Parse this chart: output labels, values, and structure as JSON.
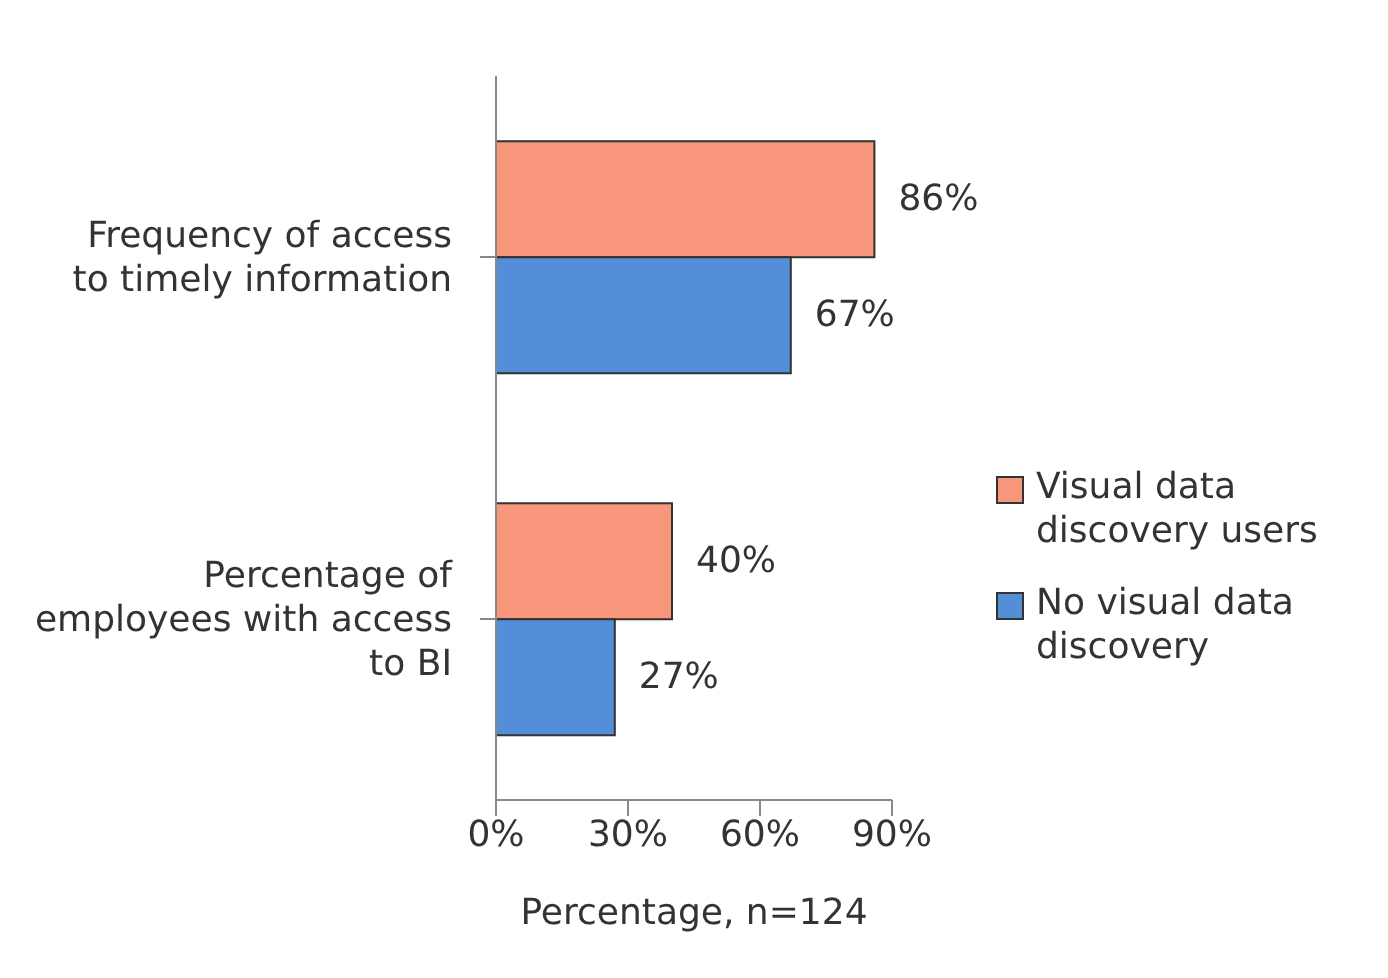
{
  "chart_data": {
    "type": "bar",
    "orientation": "horizontal",
    "categories": [
      "Frequency of access to timely information",
      "Percentage of employees with access to BI"
    ],
    "series": [
      {
        "name": "Visual data discovery users",
        "color": "#f7967a",
        "values": [
          86,
          40
        ],
        "value_labels": [
          "86%",
          "40%"
        ]
      },
      {
        "name": "No visual data discovery",
        "color": "#558ed8",
        "values": [
          67,
          27
        ],
        "value_labels": [
          "67%",
          "27%"
        ]
      }
    ],
    "xlim": [
      0,
      90
    ],
    "xticks": [
      {
        "value": 0,
        "label": "0%"
      },
      {
        "value": 30,
        "label": "30%"
      },
      {
        "value": 60,
        "label": "60%"
      },
      {
        "value": 90,
        "label": "90%"
      }
    ],
    "xlabel": "Percentage, n=124",
    "legend": "right",
    "grid": false
  }
}
